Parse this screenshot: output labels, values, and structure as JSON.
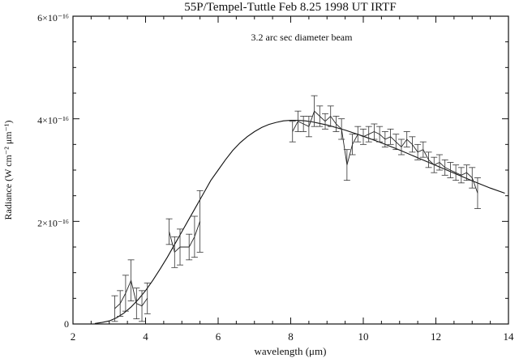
{
  "chart_data": {
    "type": "line",
    "title": "55P/Tempel-Tuttle Feb 8.25 1998 UT IRTF",
    "annotation": "3.2 arc sec diameter beam",
    "xlabel": "wavelength (μm)",
    "ylabel": "Radiance (W cm⁻² μm⁻¹)",
    "xlim": [
      2,
      14
    ],
    "ylim": [
      0,
      6e-16
    ],
    "x_ticks": [
      2,
      4,
      6,
      8,
      10,
      12,
      14
    ],
    "x_tick_labels": [
      "2",
      "4",
      "6",
      "8",
      "10",
      "12",
      "14"
    ],
    "y_ticks": [
      0,
      2e-16,
      4e-16,
      6e-16
    ],
    "y_tick_labels": [
      "0",
      "2×10⁻¹⁶",
      "4×10⁻¹⁶",
      "6×10⁻¹⁶"
    ],
    "grid": false,
    "series": [
      {
        "kind": "observed",
        "x": [
          3.15,
          3.3,
          3.45,
          3.6,
          3.75,
          3.9,
          4.05,
          4.65,
          4.8,
          4.95,
          5.2,
          5.35,
          5.5,
          8.05,
          8.2,
          8.35,
          8.5,
          8.65,
          8.8,
          8.95,
          9.1,
          9.25,
          9.4,
          9.55,
          9.7,
          9.85,
          10.0,
          10.15,
          10.3,
          10.45,
          10.6,
          10.75,
          10.9,
          11.05,
          11.2,
          11.35,
          11.5,
          11.65,
          11.8,
          11.95,
          12.1,
          12.25,
          12.4,
          12.55,
          12.7,
          12.85,
          13.0,
          13.15
        ],
        "y": [
          3e-17,
          4e-17,
          6e-17,
          8.5e-17,
          4e-17,
          3.5e-17,
          5e-17,
          1.8e-16,
          1.4e-16,
          1.5e-16,
          1.5e-16,
          1.7e-16,
          2e-16,
          3.75e-16,
          3.95e-16,
          3.9e-16,
          3.85e-16,
          4.15e-16,
          4.05e-16,
          3.95e-16,
          4.05e-16,
          3.9e-16,
          3.8e-16,
          3.1e-16,
          3.5e-16,
          3.7e-16,
          3.65e-16,
          3.7e-16,
          3.75e-16,
          3.7e-16,
          3.6e-16,
          3.65e-16,
          3.55e-16,
          3.45e-16,
          3.6e-16,
          3.5e-16,
          3.35e-16,
          3.4e-16,
          3.2e-16,
          3.1e-16,
          3.15e-16,
          3.05e-16,
          3e-16,
          2.95e-16,
          2.9e-16,
          2.95e-16,
          2.85e-16,
          2.55e-16
        ],
        "err": [
          2.5e-17,
          2.5e-17,
          3.5e-17,
          4e-17,
          3e-17,
          3e-17,
          3e-17,
          2.5e-17,
          3e-17,
          3.5e-17,
          2.5e-17,
          4e-17,
          6e-17,
          2e-17,
          2e-17,
          1.5e-17,
          2e-17,
          3e-17,
          2e-17,
          1.5e-17,
          2e-17,
          1.5e-17,
          2e-17,
          3e-17,
          2e-17,
          1.5e-17,
          1.5e-17,
          1.5e-17,
          1.5e-17,
          1.5e-17,
          1.5e-17,
          1.5e-17,
          1.5e-17,
          1.5e-17,
          1.5e-17,
          1.5e-17,
          1.5e-17,
          1.5e-17,
          1.5e-17,
          1.5e-17,
          1.5e-17,
          1.5e-17,
          1.5e-17,
          1.5e-17,
          1.5e-17,
          1.5e-17,
          2e-17,
          3e-17
        ]
      },
      {
        "kind": "model",
        "x": [
          2.6,
          2.8,
          3.0,
          3.2,
          3.4,
          3.6,
          3.8,
          4.0,
          4.2,
          4.4,
          4.6,
          4.8,
          5.0,
          5.2,
          5.4,
          5.6,
          5.8,
          6.0,
          6.2,
          6.4,
          6.6,
          6.8,
          7.0,
          7.2,
          7.4,
          7.6,
          7.8,
          8.0,
          8.2,
          8.4,
          8.6,
          8.8,
          9.0,
          9.5,
          10.0,
          10.5,
          11.0,
          11.5,
          12.0,
          12.5,
          13.0,
          13.5,
          13.9
        ],
        "y": [
          1e-18,
          3e-18,
          6e-18,
          1.2e-17,
          2.1e-17,
          3.3e-17,
          4.8e-17,
          6.5e-17,
          8.5e-17,
          1.07e-16,
          1.3e-16,
          1.55e-16,
          1.8e-16,
          2.05e-16,
          2.3e-16,
          2.55e-16,
          2.8e-16,
          3e-16,
          3.2e-16,
          3.38e-16,
          3.53e-16,
          3.65e-16,
          3.75e-16,
          3.83e-16,
          3.89e-16,
          3.93e-16,
          3.96e-16,
          3.97e-16,
          3.97e-16,
          3.96e-16,
          3.94e-16,
          3.91e-16,
          3.88e-16,
          3.78e-16,
          3.66e-16,
          3.53e-16,
          3.39e-16,
          3.24e-16,
          3.09e-16,
          2.94e-16,
          2.79e-16,
          2.65e-16,
          2.55e-16
        ]
      }
    ]
  }
}
